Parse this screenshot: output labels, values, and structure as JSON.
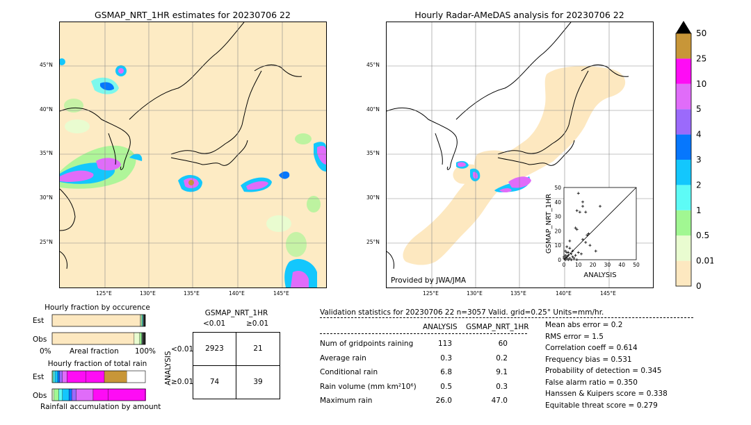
{
  "left_map": {
    "title": "GSMAP_NRT_1HR estimates for 20230706 22",
    "lat_labels": [
      "45°N",
      "40°N",
      "35°N",
      "30°N",
      "25°N"
    ],
    "lon_labels": [
      "125°E",
      "130°E",
      "135°E",
      "140°E",
      "145°E"
    ]
  },
  "right_map": {
    "title": "Hourly Radar-AMeDAS analysis for 20230706 22",
    "lat_labels": [
      "45°N",
      "40°N",
      "35°N",
      "30°N",
      "25°N"
    ],
    "lon_labels": [
      "125°E",
      "130°E",
      "135°E",
      "140°E",
      "145°E"
    ],
    "credit": "Provided by JWA/JMA"
  },
  "scatter_inset": {
    "xlabel": "ANALYSIS",
    "ylabel": "GSMAP_NRT_1HR",
    "ticks": [
      "0",
      "10",
      "20",
      "30",
      "40",
      "50"
    ]
  },
  "colorbar": {
    "labels": [
      "0",
      "0.01",
      "0.5",
      "1",
      "2",
      "3",
      "4",
      "5",
      "10",
      "25",
      "50"
    ],
    "colors": [
      "#fde8c0",
      "#e9fcd0",
      "#a1f792",
      "#5dfbf6",
      "#13c7fd",
      "#0677fd",
      "#9b6afb",
      "#e06cf9",
      "#fe0cf5",
      "#c89638"
    ],
    "over_color": "#000000"
  },
  "occurrence": {
    "title": "Hourly fraction by occurence",
    "rows": [
      "Est",
      "Obs"
    ],
    "axis_left": "0%",
    "axis_mid": "Areal fraction",
    "axis_right": "100%"
  },
  "amount": {
    "title": "Hourly fraction of total rain",
    "rows": [
      "Est",
      "Obs"
    ],
    "footer": "Rainfall accumulation by amount"
  },
  "contingency": {
    "title": "GSMAP_NRT_1HR",
    "col_labels": [
      "<0.01",
      "≥0.01"
    ],
    "row_axis": "ANALYSIS",
    "row_labels": [
      "<0.01",
      "≥0.01"
    ],
    "cells": [
      [
        "2923",
        "21"
      ],
      [
        "74",
        "39"
      ]
    ]
  },
  "validation": {
    "header": "Validation statistics for 20230706 22  n=3057 Valid. grid=0.25° Units=mm/hr.",
    "col_analysis": "ANALYSIS",
    "col_gsmap": "GSMAP_NRT_1HR",
    "rows": [
      {
        "label": "Num of gridpoints raining",
        "analysis": "113",
        "gsmap": "60"
      },
      {
        "label": "Average rain",
        "analysis": "0.3",
        "gsmap": "0.2"
      },
      {
        "label": "Conditional rain",
        "analysis": "6.8",
        "gsmap": "9.1"
      },
      {
        "label": "Rain volume (mm km²10⁶)",
        "analysis": "0.5",
        "gsmap": "0.3"
      },
      {
        "label": "Maximum rain",
        "analysis": "26.0",
        "gsmap": "47.0"
      }
    ],
    "scores": [
      "Mean abs error =    0.2",
      "RMS error =    1.5",
      "Correlation coeff =  0.614",
      "Frequency bias =  0.531",
      "Probability of detection =  0.345",
      "False alarm ratio =  0.350",
      "Hanssen & Kuipers score =  0.338",
      "Equitable threat score =  0.279"
    ]
  },
  "chart_data": [
    {
      "type": "scatter",
      "xlabel": "ANALYSIS",
      "ylabel": "GSMAP_NRT_1HR",
      "xlim": [
        0,
        50
      ],
      "ylim": [
        0,
        50
      ],
      "points": [
        [
          10,
          46
        ],
        [
          13,
          40
        ],
        [
          13,
          37
        ],
        [
          9,
          34
        ],
        [
          11,
          33
        ],
        [
          15,
          33
        ],
        [
          25,
          37
        ],
        [
          8,
          22
        ],
        [
          9,
          21
        ],
        [
          17,
          18
        ],
        [
          16,
          17
        ],
        [
          13,
          14
        ],
        [
          15,
          12
        ],
        [
          18,
          10
        ],
        [
          22,
          6
        ],
        [
          4,
          13
        ],
        [
          2,
          9
        ],
        [
          4,
          8
        ],
        [
          6,
          6
        ],
        [
          1,
          6
        ],
        [
          2,
          5
        ],
        [
          3,
          5
        ],
        [
          5,
          4
        ],
        [
          1,
          3
        ],
        [
          2,
          2
        ],
        [
          3,
          3
        ],
        [
          8,
          3
        ],
        [
          10,
          5
        ],
        [
          12,
          4
        ],
        [
          1,
          1
        ],
        [
          2,
          1
        ],
        [
          4,
          1
        ],
        [
          6,
          2
        ],
        [
          0,
          1
        ],
        [
          1,
          0
        ],
        [
          3,
          0
        ],
        [
          0,
          2
        ],
        [
          7,
          1
        ],
        [
          9,
          0
        ],
        [
          5,
          0
        ]
      ]
    },
    {
      "type": "bar",
      "title": "Hourly fraction by occurence",
      "categories": [
        "Est",
        "Obs"
      ],
      "series": [
        {
          "values": [
            0.945,
            0.88
          ]
        },
        {
          "values": [
            0.01,
            0.06
          ]
        },
        {
          "values": [
            0.01,
            0.02
          ]
        },
        {
          "values": [
            0.01,
            0.005
          ]
        },
        {
          "values": [
            0.01,
            0.015
          ]
        },
        {
          "values": [
            0.015,
            0.02
          ]
        }
      ]
    },
    {
      "type": "bar",
      "title": "Hourly fraction of total rain",
      "categories": [
        "Est",
        "Obs"
      ],
      "series": [
        {
          "values": [
            0.0,
            0.02
          ]
        },
        {
          "values": [
            0.01,
            0.05
          ]
        },
        {
          "values": [
            0.02,
            0.04
          ]
        },
        {
          "values": [
            0.03,
            0.07
          ]
        },
        {
          "values": [
            0.02,
            0.03
          ]
        },
        {
          "values": [
            0.03,
            0.05
          ]
        },
        {
          "values": [
            0.05,
            0.18
          ]
        },
        {
          "values": [
            0.2,
            0.16
          ]
        },
        {
          "values": [
            0.2,
            0.43
          ]
        },
        {
          "values": [
            0.24,
            0.04
          ]
        }
      ]
    }
  ]
}
